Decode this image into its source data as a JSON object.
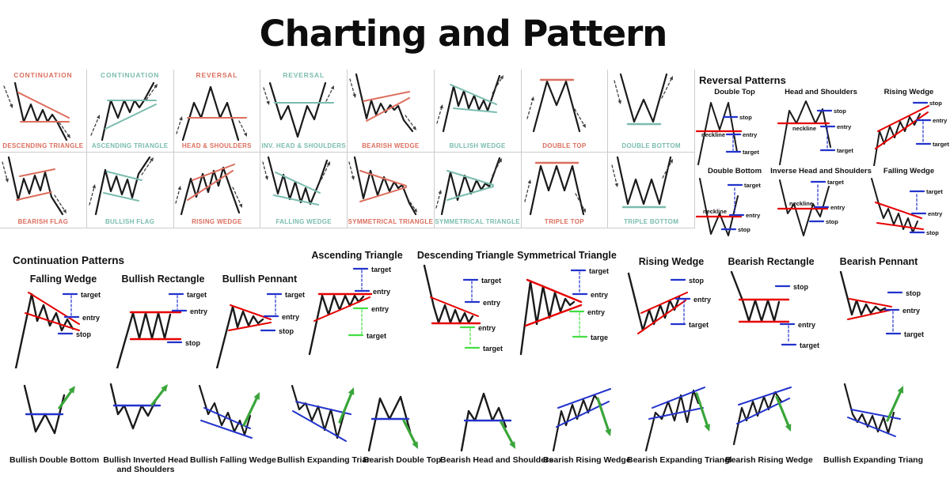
{
  "title": "Charting and Pattern",
  "colors": {
    "salmon": "#DC6E5E",
    "teal": "#7ABCAE",
    "red": "#E60000",
    "blue": "#2233CC",
    "green": "#3AA53A",
    "green_light": "#44DD44",
    "black": "#1A1A1A",
    "arrow_gray": "#3F3F3F",
    "grid_line": "#CCCCCC"
  },
  "top_grid": {
    "rows": [
      [
        {
          "header": "CONTINUATION",
          "label": "DESCENDING TRIANGLE",
          "accent": "salmon",
          "shape": "descending-triangle"
        },
        {
          "header": "CONTINUATION",
          "label": "ASCENDING TRIANGLE",
          "accent": "teal",
          "shape": "ascending-triangle"
        },
        {
          "header": "REVERSAL",
          "label": "HEAD & SHOULDERS",
          "accent": "salmon",
          "shape": "head-shoulders"
        },
        {
          "header": "REVERSAL",
          "label": "INV. HEAD & SHOULDERS",
          "accent": "teal",
          "shape": "inv-head-shoulders"
        },
        {
          "header": "",
          "label": "BEARISH WEDGE",
          "accent": "salmon",
          "shape": "bearish-wedge"
        },
        {
          "header": "",
          "label": "BULLISH WEDGE",
          "accent": "teal",
          "shape": "bullish-wedge"
        },
        {
          "header": "",
          "label": "DOUBLE TOP",
          "accent": "salmon",
          "shape": "double-top"
        },
        {
          "header": "",
          "label": "DOUBLE BOTTOM",
          "accent": "teal",
          "shape": "double-bottom"
        }
      ],
      [
        {
          "header": "",
          "label": "BEARISH FLAG",
          "accent": "salmon",
          "shape": "bearish-flag"
        },
        {
          "header": "",
          "label": "BULLISH FLAG",
          "accent": "teal",
          "shape": "bullish-flag"
        },
        {
          "header": "",
          "label": "RISING WEDGE",
          "accent": "salmon",
          "shape": "rising-wedge"
        },
        {
          "header": "",
          "label": "FALLING WEDGE",
          "accent": "teal",
          "shape": "falling-wedge"
        },
        {
          "header": "",
          "label": "SYMMETRICAL TRIANGLE",
          "accent": "salmon",
          "shape": "symmetrical-triangle-down"
        },
        {
          "header": "",
          "label": "SYMMETRICAL TRIANGLE",
          "accent": "teal",
          "shape": "symmetrical-triangle-up"
        },
        {
          "header": "",
          "label": "TRIPLE TOP",
          "accent": "salmon",
          "shape": "triple-top"
        },
        {
          "header": "",
          "label": "TRIPLE BOTTOM",
          "accent": "teal",
          "shape": "triple-bottom"
        }
      ]
    ]
  },
  "reversal_section": {
    "heading": "Reversal Patterns",
    "items": [
      {
        "title": "Double Top",
        "shape": "rv-double-top",
        "annotations": [
          "stop",
          "neckline",
          "entry",
          "target"
        ]
      },
      {
        "title": "Head and Shoulders",
        "shape": "rv-head-shoulders",
        "annotations": [
          "stop",
          "neckline",
          "entry",
          "target"
        ]
      },
      {
        "title": "Rising Wedge",
        "shape": "rv-rising-wedge",
        "annotations": [
          "stop",
          "entry",
          "target"
        ]
      },
      {
        "title": "Double Bottom",
        "shape": "rv-double-bottom",
        "annotations": [
          "target",
          "neckline",
          "entry",
          "stop"
        ]
      },
      {
        "title": "Inverse Head and Shoulders",
        "shape": "rv-inverse-head-shoulders",
        "annotations": [
          "target",
          "neckline",
          "entry",
          "stop"
        ]
      },
      {
        "title": "Falling Wedge",
        "shape": "rv-falling-wedge",
        "annotations": [
          "target",
          "entry",
          "stop"
        ]
      }
    ]
  },
  "continuation_section": {
    "heading": "Continuation Patterns",
    "items": [
      {
        "title": "Falling Wedge",
        "shape": "ct-falling-wedge",
        "annotations": [
          "target",
          "entry",
          "stop"
        ]
      },
      {
        "title": "Bullish Rectangle",
        "shape": "ct-bullish-rectangle",
        "annotations": [
          "target",
          "entry",
          "stop"
        ]
      },
      {
        "title": "Bullish Pennant",
        "shape": "ct-bullish-pennant",
        "annotations": [
          "target",
          "entry",
          "stop"
        ]
      },
      {
        "title": "Ascending Triangle",
        "shape": "ct-ascending-triangle",
        "annotations": [
          "target",
          "entry",
          "entry",
          "target"
        ]
      },
      {
        "title": "Descending Triangle",
        "shape": "ct-descending-triangle",
        "annotations": [
          "target",
          "entry",
          "entry",
          "target"
        ]
      },
      {
        "title": "Symmetrical Triangle",
        "shape": "ct-symmetrical-triangle",
        "annotations": [
          "target",
          "entry",
          "entry",
          "targe"
        ]
      },
      {
        "title": "Rising Wedge",
        "shape": "ct-rising-wedge",
        "annotations": [
          "stop",
          "entry",
          "target"
        ]
      },
      {
        "title": "Bearish Rectangle",
        "shape": "ct-bearish-rectangle",
        "annotations": [
          "stop",
          "entry",
          "target"
        ]
      },
      {
        "title": "Bearish Pennant",
        "shape": "ct-bearish-pennant",
        "annotations": [
          "stop",
          "entry",
          "target"
        ]
      }
    ]
  },
  "bottom_row": {
    "items": [
      {
        "label": "Bullish Double Bottom",
        "shape": "bt-bullish-double-bottom"
      },
      {
        "label": "Bullish Inverted Head and Shoulders",
        "shape": "bt-bullish-inverted-head-and-shoulders"
      },
      {
        "label": "Bullish Falling Wedge",
        "shape": "bt-bullish-falling-wedge"
      },
      {
        "label": "Bullish Expanding Triar",
        "shape": "bt-bullish-expanding-triangle"
      },
      {
        "label": "Bearish Double Top",
        "shape": "bt-bearish-double-top"
      },
      {
        "label": "Bearish Head and Shoulders",
        "shape": "bt-bearish-head-and-shoulders"
      },
      {
        "label": "Bearish Rising Wedge",
        "shape": "bt-bearish-rising-wedge"
      },
      {
        "label": "Bearish Expanding Triangl",
        "shape": "bt-bearish-expanding-triangle"
      },
      {
        "label": "Bearish Rising Wedge",
        "shape": "bt-bearish-rising-wedge-2"
      },
      {
        "label": "Bullish Expanding Triang",
        "shape": "bt-bullish-expanding-triangle-2"
      }
    ]
  }
}
